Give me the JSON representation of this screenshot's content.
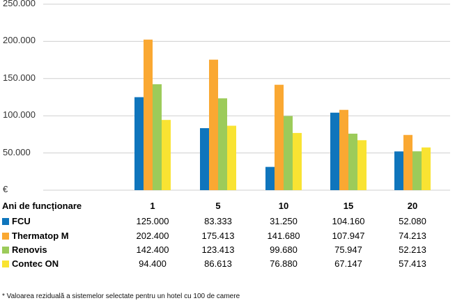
{
  "chart_data": {
    "type": "bar",
    "categories": [
      "1",
      "5",
      "10",
      "15",
      "20"
    ],
    "x_header": "Ani de funcționare",
    "series": [
      {
        "name": "FCU",
        "values": [
          125000,
          83333,
          31250,
          104160,
          52080
        ],
        "labels": [
          "125.000",
          "83.333",
          "31.250",
          "104.160",
          "52.080"
        ],
        "color": "#0F75BC"
      },
      {
        "name": "Thermatop M",
        "values": [
          202400,
          175413,
          141680,
          107947,
          74213
        ],
        "labels": [
          "202.400",
          "175.413",
          "141.680",
          "107.947",
          "74.213"
        ],
        "color": "#FAA832"
      },
      {
        "name": "Renovis",
        "values": [
          142400,
          123413,
          99680,
          75947,
          52213
        ],
        "labels": [
          "142.400",
          "123.413",
          "99.680",
          "75.947",
          "52.213"
        ],
        "color": "#9CCB5A"
      },
      {
        "name": "Contec ON",
        "values": [
          94400,
          86613,
          76880,
          67147,
          57413
        ],
        "labels": [
          "94.400",
          "86.613",
          "76.880",
          "67.147",
          "57.413"
        ],
        "color": "#F9E332"
      }
    ],
    "y_ticks": [
      "€",
      "50.000",
      "100.000",
      "150.000",
      "200.000",
      "250.000"
    ],
    "ylim": [
      0,
      250000
    ],
    "grid": true,
    "legend": "table-below"
  },
  "footnote": "* Valoarea reziduală a sistemelor selectate pentru un hotel cu 100 de camere"
}
